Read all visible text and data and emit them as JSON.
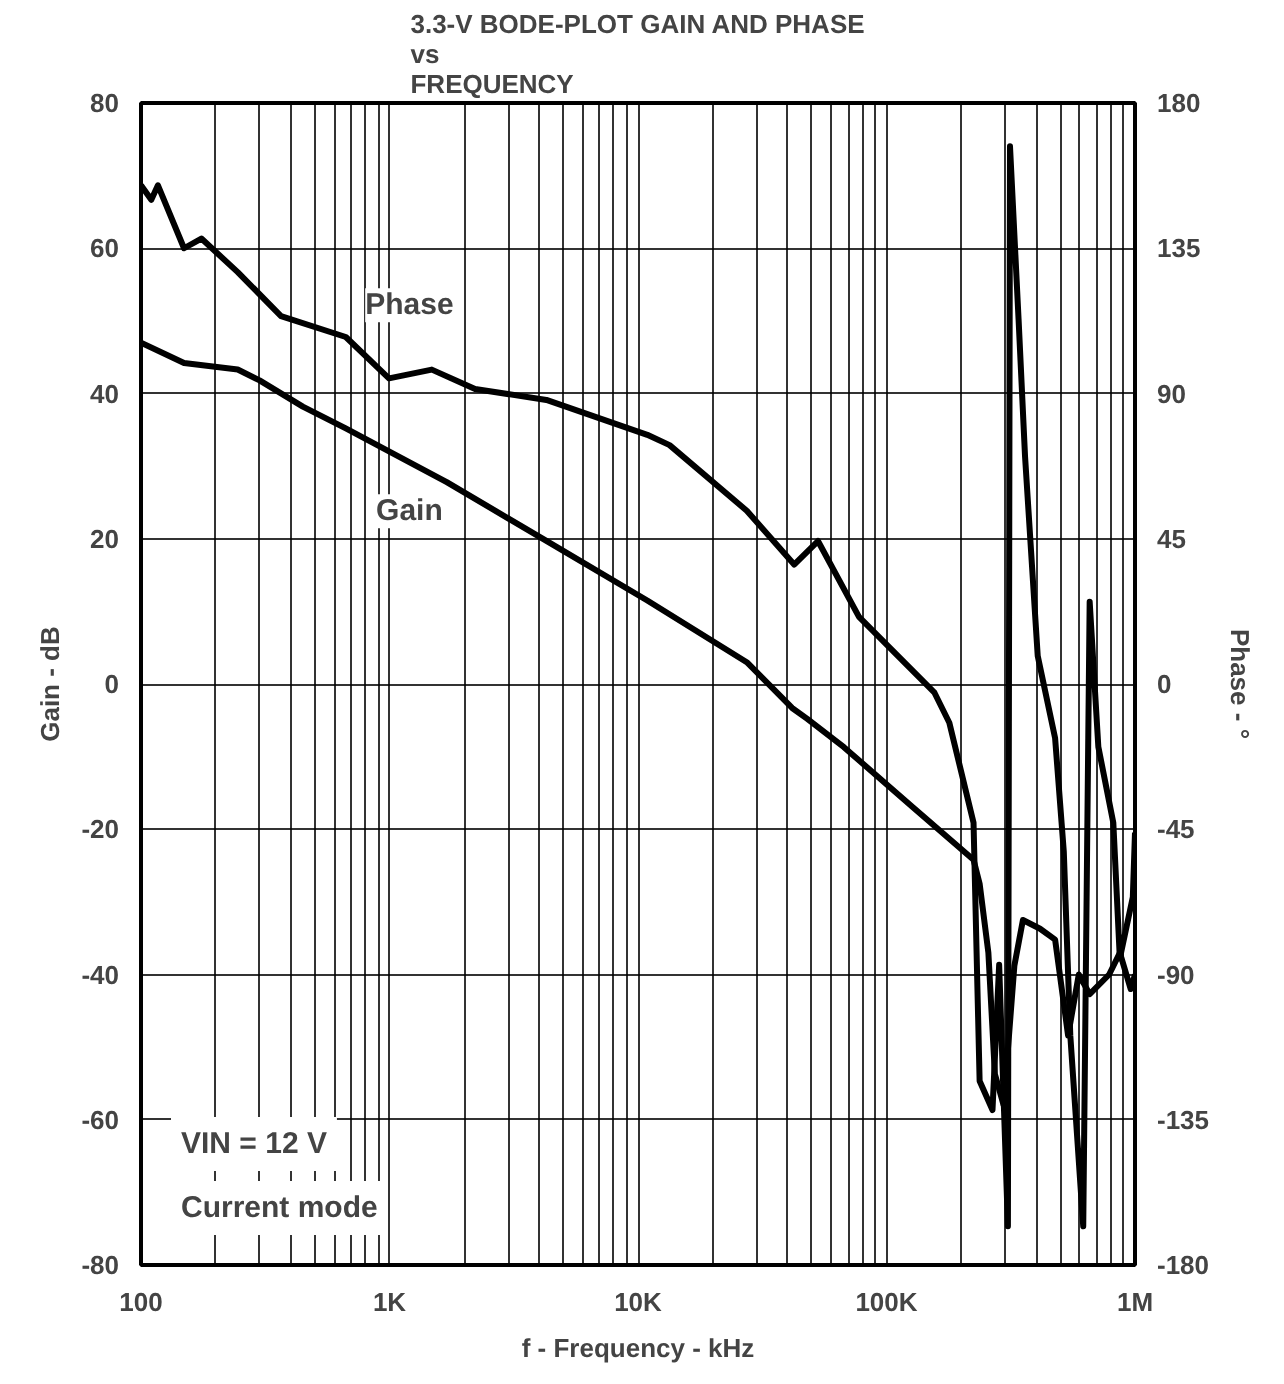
{
  "chart_data": {
    "type": "line",
    "title": "3.3-V BODE-PLOT GAIN AND PHASE\nvs\nFREQUENCY",
    "xlabel": "f - Frequency - kHz",
    "ylabel": "Gain - dB",
    "y2label": "Phase - °",
    "log": "x",
    "grid": true,
    "xlim": [
      100,
      1000000
    ],
    "xticks": [
      100,
      {
        "value": 1000,
        "label": "1K"
      },
      {
        "value": 10000,
        "label": "10K"
      },
      {
        "value": 100000,
        "label": "100K"
      },
      {
        "value": 1000000,
        "label": "1M"
      }
    ],
    "ylim": [
      -80,
      80
    ],
    "yticks": [
      -80,
      -60,
      -40,
      -20,
      0,
      20,
      40,
      60,
      80
    ],
    "y2lim": [
      -180,
      180
    ],
    "y2ticks": [
      -180,
      -135,
      -90,
      -45,
      0,
      45,
      90,
      135,
      180
    ],
    "annotations": [
      "VIN = 12 V",
      "Current mode"
    ],
    "series": [
      {
        "name": "Phase",
        "color": "#000000",
        "axis": "y2",
        "x": [
          100,
          110,
          117,
          149,
          175,
          245,
          366,
          667,
          995,
          1480,
          2210,
          4280,
          10900,
          13400,
          27400,
          42500,
          53000,
          77500,
          156000,
          179000,
          224000,
          237000,
          267000,
          284000,
          308000,
          314000,
          340000,
          361000,
          406000,
          477000,
          517000,
          549000,
          619000,
          657000,
          712000,
          818000,
          869000,
          980000,
          1000000
        ],
        "values": [
          154.5,
          150,
          154.5,
          135,
          138,
          127.6,
          114,
          107.5,
          94.7,
          97.4,
          91.4,
          88,
          77.2,
          74,
          53.7,
          37,
          44.3,
          20.8,
          -2.7,
          -12,
          -43,
          -123,
          -132,
          -87,
          -168,
          166.6,
          113,
          70.5,
          8.7,
          -16.8,
          -52,
          -108.8,
          -168,
          25.5,
          -19.5,
          -43,
          -85,
          -66,
          -46
        ]
      },
      {
        "name": "Gain",
        "color": "#000000",
        "x": [
          100,
          149,
          245,
          300,
          448,
          667,
          1700,
          4280,
          10900,
          27400,
          41700,
          48000,
          67400,
          128000,
          224000,
          237000,
          257000,
          273000,
          296000,
          327000,
          354000,
          415000,
          477000,
          538000,
          594000,
          657000,
          787000,
          869000,
          961000,
          1000000
        ],
        "values": [
          47,
          44.2,
          43.3,
          41.8,
          38.2,
          35.2,
          27.8,
          19.7,
          11.5,
          3,
          -3.3,
          -4.8,
          -8.7,
          -17,
          -24.2,
          -27.5,
          -37,
          -53.7,
          -58,
          -38.8,
          -32.5,
          -33.7,
          -35.2,
          -48.4,
          -40,
          -42.7,
          -40,
          -37,
          -42,
          -40
        ]
      }
    ]
  }
}
